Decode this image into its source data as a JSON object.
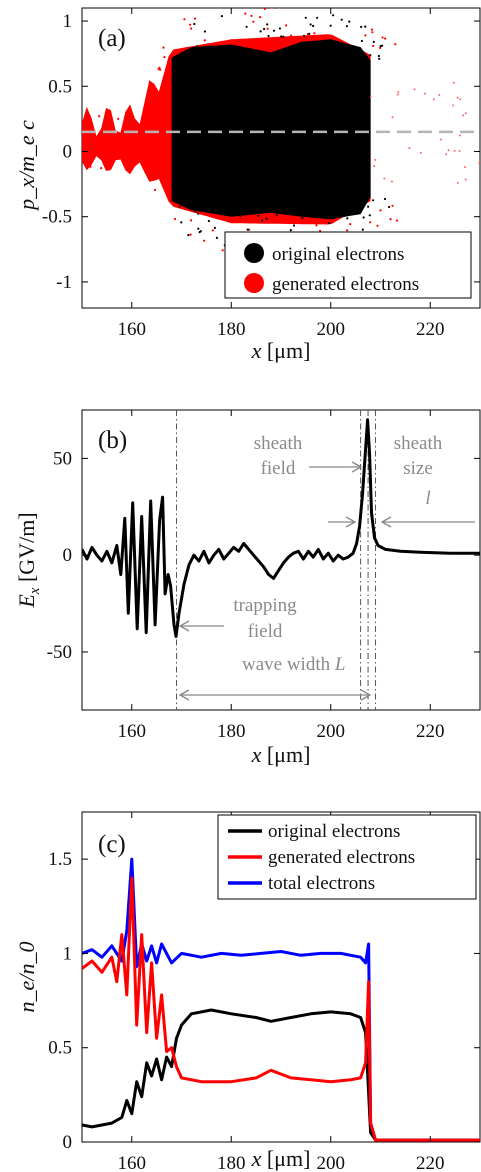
{
  "chart_data": [
    {
      "panel": "(a)",
      "type": "scatter",
      "xlabel": "x [μm]",
      "ylabel": "p_x/m_e c",
      "xlim": [
        150,
        230
      ],
      "ylim": [
        -1.2,
        1.1
      ],
      "xticks": [
        "160",
        "180",
        "200",
        "220"
      ],
      "yticks": [
        "-1",
        "-0.5",
        "0",
        "0.5",
        "1"
      ],
      "reference_line": {
        "y": 0.15,
        "style": "dashed",
        "color": "#b5b5b5"
      },
      "series": [
        {
          "name": "original electrons",
          "color": "#000000",
          "x_range": [
            168,
            208
          ],
          "upper_envelope": [
            [
              168,
              0.72
            ],
            [
              172,
              0.8
            ],
            [
              180,
              0.82
            ],
            [
              188,
              0.76
            ],
            [
              194,
              0.84
            ],
            [
              200,
              0.86
            ],
            [
              206,
              0.8
            ],
            [
              208,
              0.7
            ]
          ],
          "lower_envelope": [
            [
              168,
              -0.38
            ],
            [
              172,
              -0.45
            ],
            [
              180,
              -0.5
            ],
            [
              188,
              -0.47
            ],
            [
              194,
              -0.5
            ],
            [
              200,
              -0.52
            ],
            [
              206,
              -0.48
            ],
            [
              208,
              -0.35
            ]
          ]
        },
        {
          "name": "generated electrons",
          "color": "#ff0000",
          "x_range": [
            150,
            208
          ],
          "upper_envelope": [
            [
              150,
              0.22
            ],
            [
              160,
              0.25
            ],
            [
              164,
              0.45
            ],
            [
              168,
              0.78
            ],
            [
              180,
              0.86
            ],
            [
              200,
              0.9
            ],
            [
              208,
              0.74
            ]
          ],
          "lower_envelope": [
            [
              150,
              -0.08
            ],
            [
              160,
              -0.12
            ],
            [
              164,
              -0.18
            ],
            [
              168,
              -0.42
            ],
            [
              180,
              -0.55
            ],
            [
              200,
              -0.56
            ],
            [
              208,
              -0.38
            ]
          ]
        }
      ],
      "legend": {
        "placement": "bottom-right",
        "entries": [
          "original electrons",
          "generated electrons"
        ]
      }
    },
    {
      "panel": "(b)",
      "type": "line",
      "xlabel": "x [μm]",
      "ylabel": "E_x [GV/m]",
      "xlim": [
        150,
        230
      ],
      "ylim": [
        -80,
        75
      ],
      "xticks": [
        "160",
        "180",
        "200",
        "220"
      ],
      "yticks": [
        "-50",
        "0",
        "50"
      ],
      "series": [
        {
          "name": "E_x",
          "color": "#000000",
          "points": [
            [
              150,
              3
            ],
            [
              151,
              -2
            ],
            [
              152,
              4
            ],
            [
              153,
              0
            ],
            [
              154,
              -3
            ],
            [
              155,
              2
            ],
            [
              156,
              -4
            ],
            [
              157,
              5
            ],
            [
              157.8,
              -10
            ],
            [
              158.6,
              19
            ],
            [
              159.3,
              -30
            ],
            [
              160.2,
              27
            ],
            [
              161.1,
              -38
            ],
            [
              162,
              20
            ],
            [
              162.9,
              -40
            ],
            [
              163.8,
              28
            ],
            [
              164.7,
              -36
            ],
            [
              165.6,
              18
            ],
            [
              166.2,
              30
            ],
            [
              166.7,
              -20
            ],
            [
              167.3,
              -10
            ],
            [
              167.8,
              -16
            ],
            [
              168.5,
              -36
            ],
            [
              168.9,
              -42
            ],
            [
              169.5,
              -30
            ],
            [
              170.5,
              -15
            ],
            [
              171.5,
              -5
            ],
            [
              172.5,
              0
            ],
            [
              173.5,
              -3
            ],
            [
              174.5,
              2
            ],
            [
              175.5,
              -4
            ],
            [
              176.5,
              0
            ],
            [
              177.5,
              3
            ],
            [
              178.5,
              -2
            ],
            [
              179.5,
              1
            ],
            [
              180.5,
              4
            ],
            [
              181.5,
              2
            ],
            [
              182.5,
              6
            ],
            [
              183.5,
              3
            ],
            [
              184.5,
              0
            ],
            [
              185.5,
              -3
            ],
            [
              186.5,
              -6
            ],
            [
              187.5,
              -10
            ],
            [
              188.5,
              -12
            ],
            [
              189.5,
              -8
            ],
            [
              190.5,
              -4
            ],
            [
              191.5,
              -1
            ],
            [
              192.5,
              1
            ],
            [
              193.5,
              2
            ],
            [
              194.5,
              -2
            ],
            [
              195.5,
              2
            ],
            [
              196.5,
              -1
            ],
            [
              197.5,
              3
            ],
            [
              198.5,
              -2
            ],
            [
              199.5,
              1
            ],
            [
              200.5,
              -3
            ],
            [
              201.5,
              0
            ],
            [
              202.5,
              -2
            ],
            [
              203.5,
              -1
            ],
            [
              204.5,
              1
            ],
            [
              205.2,
              6
            ],
            [
              205.8,
              15
            ],
            [
              206.4,
              32
            ],
            [
              207,
              55
            ],
            [
              207.4,
              70
            ],
            [
              207.8,
              52
            ],
            [
              208.2,
              22
            ],
            [
              208.8,
              9
            ],
            [
              209.5,
              5
            ],
            [
              211,
              3
            ],
            [
              214,
              2
            ],
            [
              218,
              1.5
            ],
            [
              224,
              1
            ],
            [
              230,
              1
            ]
          ]
        }
      ],
      "annotations": [
        {
          "lines": [
            "sheath",
            "field"
          ]
        },
        {
          "lines": [
            "sheath",
            "size"
          ],
          "symbol": "l"
        },
        {
          "lines": [
            "trapping",
            "field"
          ]
        },
        {
          "lines": [
            "wave width"
          ],
          "symbol": "L"
        }
      ],
      "vertical_marker_lines": [
        169,
        206,
        207.5,
        209
      ]
    },
    {
      "panel": "(c)",
      "type": "line",
      "xlabel": "x [μm]",
      "ylabel": "n_e/n_0",
      "xlim": [
        150,
        230
      ],
      "ylim": [
        0,
        1.75
      ],
      "xticks": [
        "160",
        "180",
        "200",
        "220"
      ],
      "yticks": [
        "0",
        "0.5",
        "1",
        "1.5"
      ],
      "series": [
        {
          "name": "original electrons",
          "color": "#000000",
          "points": [
            [
              150,
              0.09
            ],
            [
              152,
              0.08
            ],
            [
              154,
              0.09
            ],
            [
              156,
              0.1
            ],
            [
              158,
              0.13
            ],
            [
              159,
              0.22
            ],
            [
              160,
              0.15
            ],
            [
              161,
              0.32
            ],
            [
              162,
              0.24
            ],
            [
              163,
              0.42
            ],
            [
              164,
              0.35
            ],
            [
              165,
              0.44
            ],
            [
              166,
              0.33
            ],
            [
              167,
              0.45
            ],
            [
              168,
              0.4
            ],
            [
              169,
              0.55
            ],
            [
              170,
              0.62
            ],
            [
              172,
              0.68
            ],
            [
              176,
              0.7
            ],
            [
              180,
              0.68
            ],
            [
              185,
              0.66
            ],
            [
              188,
              0.64
            ],
            [
              192,
              0.66
            ],
            [
              196,
              0.68
            ],
            [
              200,
              0.69
            ],
            [
              204,
              0.68
            ],
            [
              206,
              0.66
            ],
            [
              207,
              0.58
            ],
            [
              208,
              0.05
            ],
            [
              209,
              0.01
            ],
            [
              230,
              0.01
            ]
          ]
        },
        {
          "name": "generated electrons",
          "color": "#ff0000",
          "points": [
            [
              150,
              0.92
            ],
            [
              152,
              0.96
            ],
            [
              154,
              0.9
            ],
            [
              156,
              0.98
            ],
            [
              157,
              0.85
            ],
            [
              158,
              1.1
            ],
            [
              159,
              0.78
            ],
            [
              160,
              1.4
            ],
            [
              161,
              0.62
            ],
            [
              162,
              1.1
            ],
            [
              163,
              0.58
            ],
            [
              164,
              0.95
            ],
            [
              165,
              0.55
            ],
            [
              166,
              0.78
            ],
            [
              167,
              0.48
            ],
            [
              168,
              0.5
            ],
            [
              169,
              0.4
            ],
            [
              170,
              0.34
            ],
            [
              174,
              0.32
            ],
            [
              180,
              0.32
            ],
            [
              185,
              0.34
            ],
            [
              188,
              0.38
            ],
            [
              192,
              0.34
            ],
            [
              196,
              0.33
            ],
            [
              200,
              0.32
            ],
            [
              204,
              0.33
            ],
            [
              206,
              0.34
            ],
            [
              207,
              0.42
            ],
            [
              207.6,
              0.85
            ],
            [
              208,
              0.1
            ],
            [
              209,
              0.01
            ],
            [
              230,
              0.01
            ]
          ]
        },
        {
          "name": "total electrons",
          "color": "#0000ff",
          "points": [
            [
              150,
              1.0
            ],
            [
              152,
              1.02
            ],
            [
              154,
              0.98
            ],
            [
              156,
              1.04
            ],
            [
              158,
              0.96
            ],
            [
              159,
              1.12
            ],
            [
              160,
              1.5
            ],
            [
              161,
              0.93
            ],
            [
              162,
              1.05
            ],
            [
              163,
              0.96
            ],
            [
              164,
              1.04
            ],
            [
              165,
              0.95
            ],
            [
              166,
              1.05
            ],
            [
              168,
              0.95
            ],
            [
              170,
              1.0
            ],
            [
              174,
              0.98
            ],
            [
              178,
              1.0
            ],
            [
              182,
              0.99
            ],
            [
              186,
              1.0
            ],
            [
              190,
              1.01
            ],
            [
              194,
              0.99
            ],
            [
              198,
              1.0
            ],
            [
              202,
              1.0
            ],
            [
              206,
              0.98
            ],
            [
              207,
              0.95
            ],
            [
              207.6,
              1.05
            ],
            [
              208,
              0.1
            ],
            [
              209,
              0.01
            ],
            [
              230,
              0.01
            ]
          ]
        }
      ],
      "legend": {
        "placement": "top-right",
        "entries": [
          "original electrons",
          "generated electrons",
          "total electrons"
        ]
      }
    }
  ],
  "labels": {
    "a_panel": "(a)",
    "b_panel": "(b)",
    "c_panel": "(c)",
    "x_label_var": "x",
    "x_label_unit": "[μm]",
    "a_ylabel": "p_x/m_e c",
    "b_ylabel_var": "E",
    "b_ylabel_sub": "x",
    "b_ylabel_unit": "[GV/m]",
    "c_ylabel": "n_e/n_0",
    "a_leg1": "original electrons",
    "a_leg2": "generated electrons",
    "c_leg1": "original electrons",
    "c_leg2": "generated electrons",
    "c_leg3": "total electrons",
    "ann_sheath1": "sheath",
    "ann_field1": "field",
    "ann_sheath2": "sheath",
    "ann_size": "size",
    "ann_l": "l",
    "ann_trapping": "trapping",
    "ann_field2": "field",
    "ann_wavewidth": "wave width",
    "ann_L": "L"
  }
}
